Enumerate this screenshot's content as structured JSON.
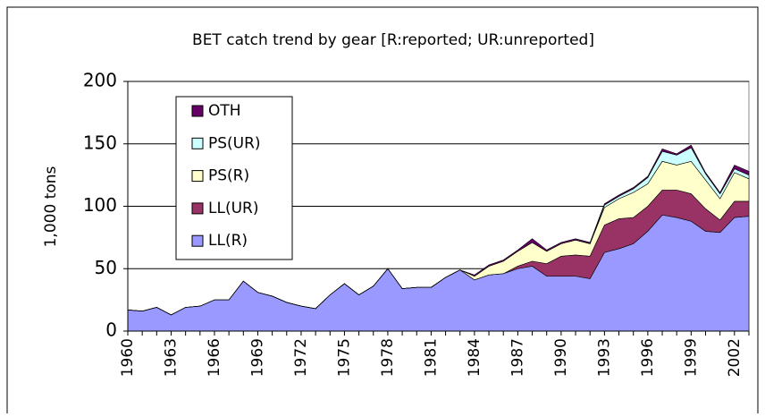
{
  "chart_data": {
    "type": "stacked-area",
    "title": "BET catch trend by gear [R:reported; UR:unreported]",
    "y_label": "1,000 tons",
    "categories": [
      "1960",
      null,
      null,
      "1963",
      null,
      null,
      "1966",
      null,
      null,
      "1969",
      null,
      null,
      "1972",
      null,
      null,
      "1975",
      null,
      null,
      "1978",
      null,
      null,
      "1981",
      null,
      null,
      "1984",
      null,
      null,
      "1987",
      null,
      null,
      "1990",
      null,
      null,
      "1993",
      null,
      null,
      "1996",
      null,
      null,
      "1999",
      null,
      null,
      "2002",
      null
    ],
    "series": [
      {
        "name": "LL(R)",
        "color": "#9999ff",
        "values": [
          17,
          16,
          19,
          13,
          19,
          20,
          25,
          25,
          40,
          31,
          28,
          23,
          20,
          18,
          29,
          38,
          29,
          36,
          50,
          34,
          35,
          35,
          43,
          49,
          41,
          45,
          46,
          50,
          52,
          44,
          44,
          44,
          42,
          63,
          66,
          70,
          80,
          93,
          91,
          88,
          80,
          79,
          91,
          92
        ]
      },
      {
        "name": "LL(UR)",
        "color": "#993366",
        "values": [
          0,
          0,
          0,
          0,
          0,
          0,
          0,
          0,
          0,
          0,
          0,
          0,
          0,
          0,
          0,
          0,
          0,
          0,
          0,
          0,
          0,
          0,
          0,
          0,
          0,
          0,
          0,
          2,
          4,
          10,
          16,
          17,
          18,
          22,
          24,
          21,
          20,
          20,
          22,
          22,
          18,
          10,
          13,
          12
        ]
      },
      {
        "name": "PS(R)",
        "color": "#ffffcc",
        "values": [
          0,
          0,
          0,
          0,
          0,
          0,
          0,
          0,
          0,
          0,
          0,
          0,
          0,
          0,
          0,
          0,
          0,
          0,
          0,
          0,
          0,
          0,
          0,
          0,
          3,
          7,
          10,
          12,
          15,
          10,
          10,
          12,
          10,
          14,
          16,
          20,
          18,
          23,
          20,
          26,
          23,
          17,
          23,
          18
        ]
      },
      {
        "name": "PS(UR)",
        "color": "#ccffff",
        "values": [
          0,
          0,
          0,
          0,
          0,
          0,
          0,
          0,
          0,
          0,
          0,
          0,
          0,
          0,
          0,
          0,
          0,
          0,
          0,
          0,
          0,
          0,
          0,
          0,
          0,
          0,
          0,
          0,
          0,
          0,
          0,
          0,
          0,
          2,
          2,
          3,
          5,
          8,
          8,
          11,
          5,
          4,
          3,
          3
        ]
      },
      {
        "name": "OTH",
        "color": "#660066",
        "values": [
          0,
          0,
          0,
          0,
          0,
          0,
          0,
          0,
          0,
          0,
          0,
          0,
          0,
          0,
          0,
          0,
          0,
          0,
          0,
          0,
          0,
          0,
          0,
          0,
          1,
          1,
          1,
          1,
          3,
          1,
          1,
          1,
          1,
          1,
          1,
          1,
          1,
          2,
          1,
          2,
          1,
          1,
          3,
          3
        ]
      }
    ],
    "ylim": [
      0,
      200
    ],
    "yticks": [
      0,
      50,
      100,
      150,
      200
    ],
    "grid": true
  }
}
